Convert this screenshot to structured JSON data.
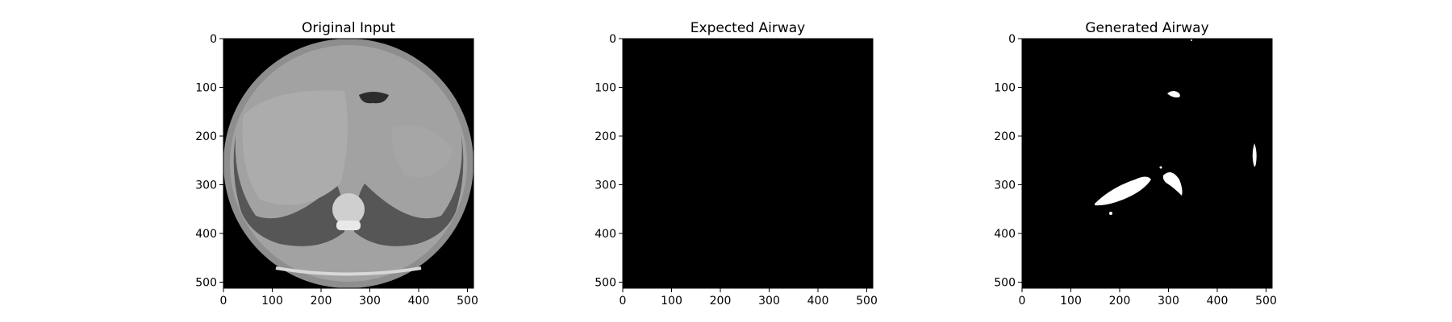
{
  "figure": {
    "panels": [
      {
        "id": "original",
        "title": "Original Input",
        "image_kind": "ct-slice-grayscale",
        "xticks": [
          "0",
          "100",
          "200",
          "300",
          "400",
          "500"
        ],
        "yticks": [
          "0",
          "100",
          "200",
          "300",
          "400",
          "500"
        ],
        "x_range": [
          0,
          512
        ],
        "y_range": [
          0,
          512
        ]
      },
      {
        "id": "expected",
        "title": "Expected Airway",
        "image_kind": "blank-black-mask",
        "xticks": [
          "0",
          "100",
          "200",
          "300",
          "400",
          "500"
        ],
        "yticks": [
          "0",
          "100",
          "200",
          "300",
          "400",
          "500"
        ],
        "x_range": [
          0,
          512
        ],
        "y_range": [
          0,
          512
        ]
      },
      {
        "id": "generated",
        "title": "Generated Airway",
        "image_kind": "binary-airway-mask",
        "xticks": [
          "0",
          "100",
          "200",
          "300",
          "400",
          "500"
        ],
        "yticks": [
          "0",
          "100",
          "200",
          "300",
          "400",
          "500"
        ],
        "x_range": [
          0,
          512
        ],
        "y_range": [
          0,
          512
        ]
      }
    ],
    "colors": {
      "background": "#ffffff",
      "image_black": "#000000",
      "mask_white": "#ffffff",
      "ct_body": "#a8a8a8",
      "ct_outer_ring": "#8c8c8c",
      "ct_lung": "#505050",
      "ct_bone": "#e6e6e6"
    }
  }
}
